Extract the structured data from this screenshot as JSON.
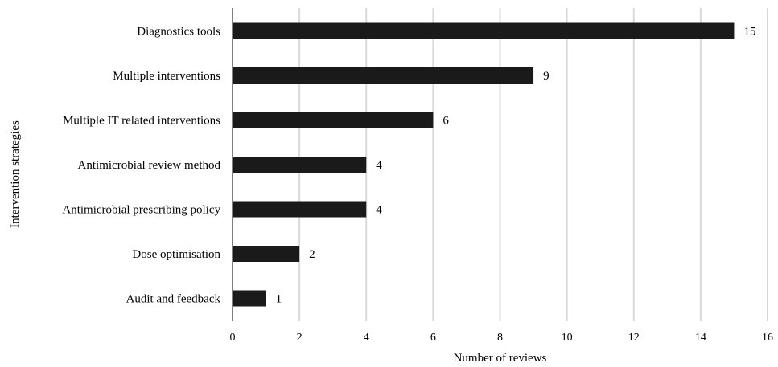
{
  "chart_data": {
    "type": "bar",
    "orientation": "horizontal",
    "categories": [
      "Diagnostics tools",
      "Multiple interventions",
      "Multiple IT related interventions",
      "Antimicrobial review method",
      "Antimicrobial prescribing policy",
      "Dose optimisation",
      "Audit and feedback"
    ],
    "values": [
      15,
      9,
      6,
      4,
      4,
      2,
      1
    ],
    "value_labels": [
      "15",
      "9",
      "6",
      "4",
      "4",
      "2",
      "1"
    ],
    "xlabel": "Number of reviews",
    "ylabel": "Intervention strategies",
    "xlim": [
      0,
      16
    ],
    "xticks": [
      "0",
      "2",
      "4",
      "6",
      "8",
      "10",
      "12",
      "14",
      "16"
    ],
    "grid": "vertical",
    "legend": "none",
    "bar_color": "#1a1a1a",
    "grid_color": "#d9d9d9"
  }
}
